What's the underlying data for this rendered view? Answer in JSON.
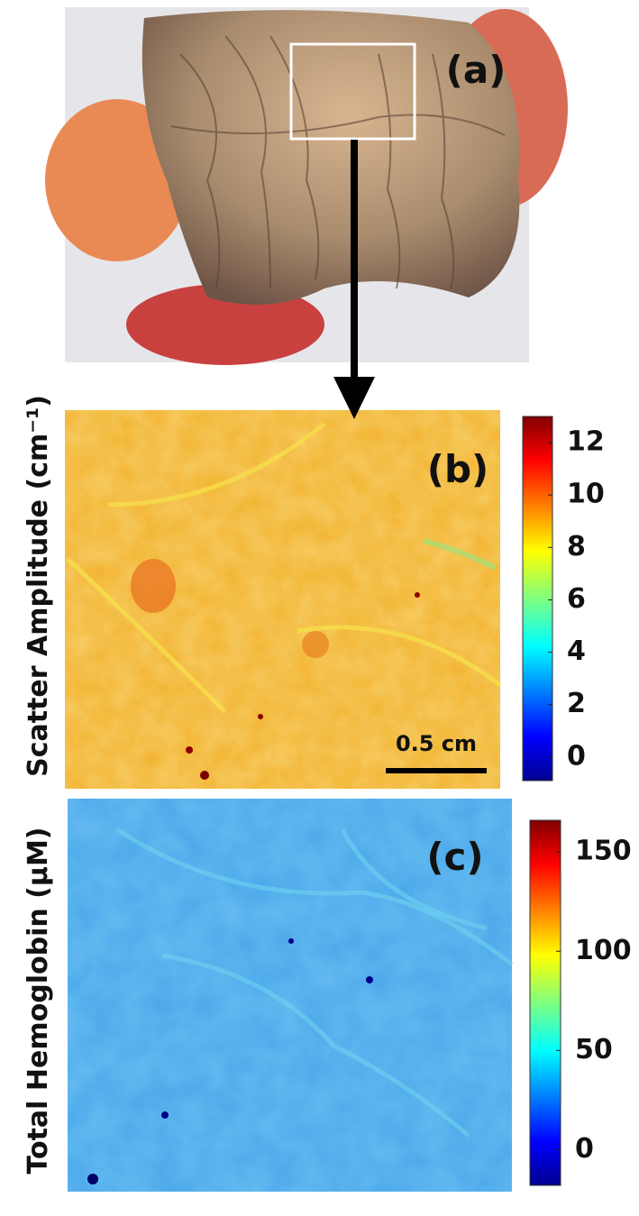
{
  "panels": [
    {
      "label": "(a)"
    },
    {
      "label": "(b)",
      "ylabel": "Scatter Amplitude (cm⁻¹)",
      "scale_bar": "0.5 cm",
      "colorbar": {
        "lim": [
          -0.9,
          13
        ],
        "ticks": [
          0,
          2,
          4,
          6,
          8,
          10,
          12
        ]
      }
    },
    {
      "label": "(c)",
      "ylabel": "Total Hemoglobin (µM)",
      "colorbar": {
        "lim": [
          -18,
          166
        ],
        "ticks": [
          0,
          50,
          100,
          150
        ]
      }
    }
  ]
}
